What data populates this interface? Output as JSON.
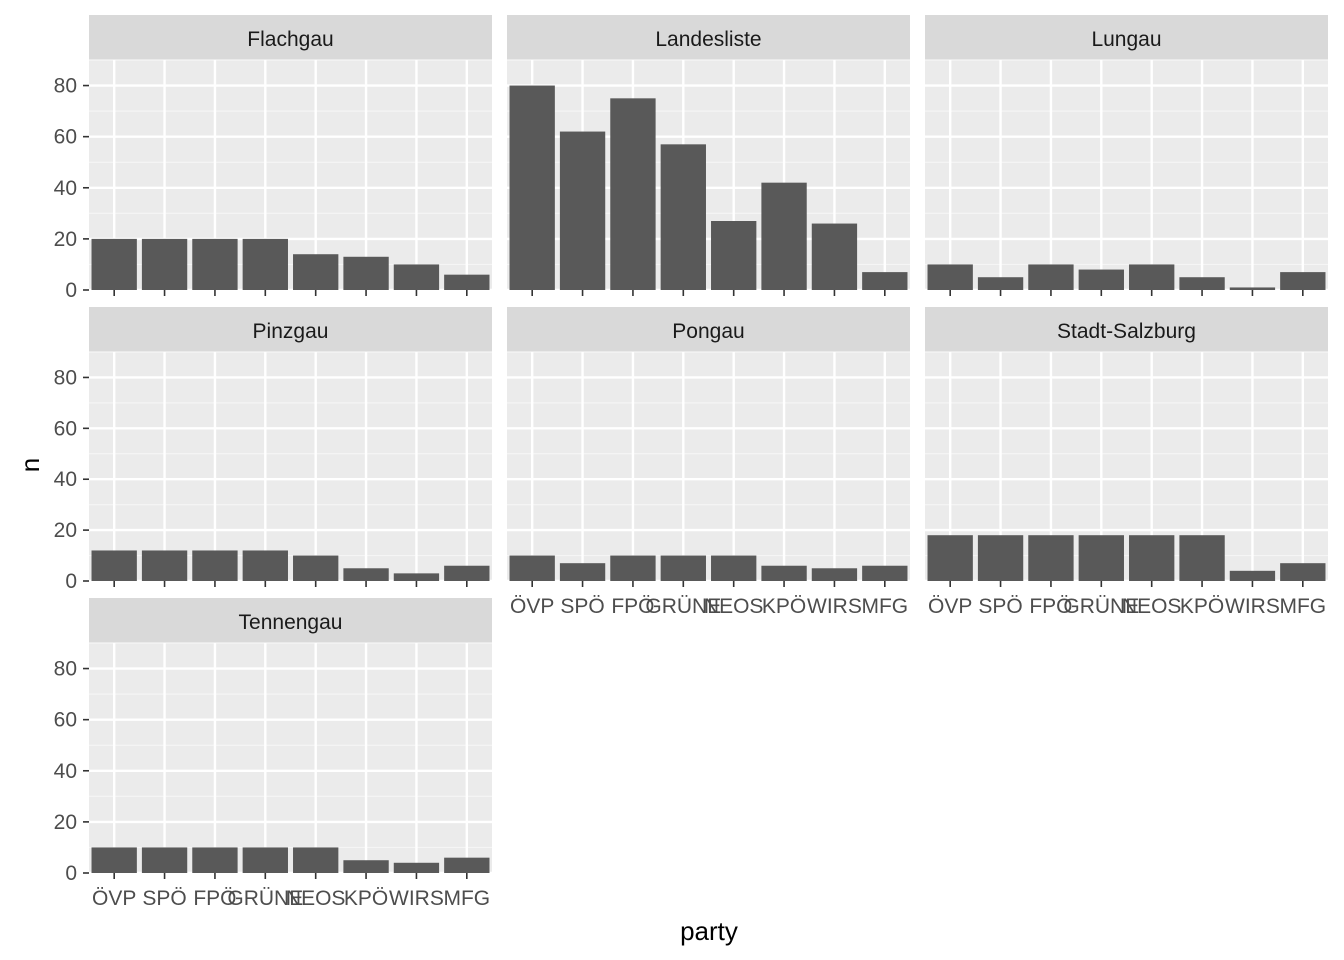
{
  "chart_data": {
    "type": "bar",
    "facet_by": "region",
    "xlabel": "party",
    "ylabel": "n",
    "ylim": [
      0,
      90
    ],
    "yticks": [
      0,
      20,
      40,
      60,
      80
    ],
    "grid": true,
    "categories": [
      "ÖVP",
      "SPÖ",
      "FPÖ",
      "GRÜNE",
      "NEOS",
      "KPÖ",
      "WIRS",
      "MFG"
    ],
    "panels": [
      {
        "title": "Flachgau",
        "values": [
          20,
          20,
          20,
          20,
          14,
          13,
          10,
          6
        ]
      },
      {
        "title": "Landesliste",
        "values": [
          80,
          62,
          75,
          57,
          27,
          42,
          26,
          7
        ]
      },
      {
        "title": "Lungau",
        "values": [
          10,
          5,
          10,
          8,
          10,
          5,
          1,
          7
        ]
      },
      {
        "title": "Pinzgau",
        "values": [
          12,
          12,
          12,
          12,
          10,
          5,
          3,
          6
        ]
      },
      {
        "title": "Pongau",
        "values": [
          10,
          7,
          10,
          10,
          10,
          6,
          5,
          6
        ]
      },
      {
        "title": "Stadt-Salzburg",
        "values": [
          18,
          18,
          18,
          18,
          18,
          18,
          4,
          7
        ]
      },
      {
        "title": "Tennengau",
        "values": [
          10,
          10,
          10,
          10,
          10,
          5,
          4,
          6
        ]
      }
    ]
  },
  "colors": {
    "bar": "#595959",
    "panel_background": "#ebebeb",
    "strip_background": "#d9d9d9",
    "grid_major": "#ffffff",
    "grid_minor": "#f5f5f5"
  }
}
